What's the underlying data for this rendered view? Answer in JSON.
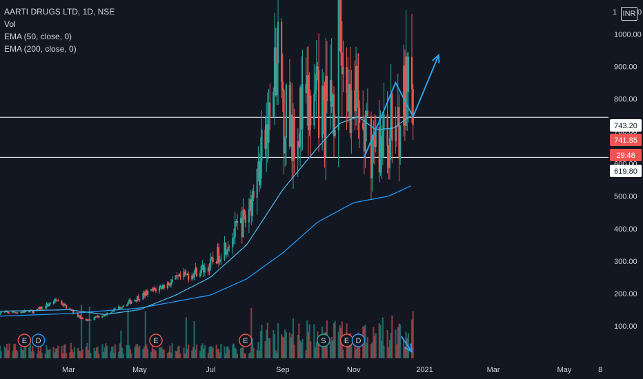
{
  "header": {
    "title": "AARTI DRUGS LTD, 1D, NSE",
    "indicators": [
      "Vol",
      "EMA (50, close, 0)",
      "EMA (200, close, 0)"
    ],
    "currency": "INR",
    "currency_left": "1",
    "currency_right": "0"
  },
  "colors": {
    "background": "#131722",
    "up": "#26a69a",
    "down": "#ef5350",
    "ema50": "#4ab3e2",
    "ema200": "#2196f3",
    "drawing": "#29a3e8",
    "level_line": "#ffffff",
    "text": "#d1d4dc"
  },
  "chart_data": {
    "type": "candlestick",
    "y_axis": {
      "ticks": [
        100,
        200,
        300,
        400,
        500,
        600,
        700,
        800,
        900,
        1000
      ],
      "tick_labels": [
        "100.00",
        "200.00",
        "300.00",
        "400.00",
        "500.00",
        "600.00",
        "700.00",
        "800.00",
        "900.00",
        "1000.00"
      ],
      "range": [
        0,
        1105
      ]
    },
    "x_axis": {
      "tick_labels": [
        "Mar",
        "May",
        "Jul",
        "Sep",
        "Nov",
        "2021",
        "Mar",
        "May",
        "8"
      ],
      "range": [
        "2020-01-02",
        "2021-06-08"
      ]
    },
    "horizontal_lines": [
      {
        "value": 743.2,
        "label": "743.20"
      },
      {
        "value": 619.8,
        "label": "619.80"
      }
    ],
    "price_badges": [
      {
        "label": "743.20",
        "style": "white"
      },
      {
        "label": "741.85",
        "style": "red"
      },
      {
        "label": "29:48",
        "style": "red"
      },
      {
        "label": "619.80",
        "style": "white"
      }
    ],
    "close_anchors": [
      [
        "2020-01-01",
        140
      ],
      [
        "2020-02-01",
        145
      ],
      [
        "2020-02-20",
        180
      ],
      [
        "2020-03-15",
        115
      ],
      [
        "2020-04-01",
        135
      ],
      [
        "2020-05-01",
        190
      ],
      [
        "2020-05-31",
        240
      ],
      [
        "2020-06-30",
        285
      ],
      [
        "2020-07-31",
        430
      ],
      [
        "2020-08-10",
        560
      ],
      [
        "2020-08-20",
        720
      ],
      [
        "2020-08-27",
        880
      ],
      [
        "2020-09-05",
        730
      ],
      [
        "2020-09-30",
        760
      ],
      [
        "2020-10-10",
        740
      ],
      [
        "2020-10-20",
        960
      ],
      [
        "2020-10-31",
        800
      ],
      [
        "2020-11-10",
        680
      ],
      [
        "2020-11-20",
        650
      ],
      [
        "2020-12-05",
        710
      ],
      [
        "2020-12-12",
        780
      ],
      [
        "2020-12-18",
        790
      ],
      [
        "2020-12-22",
        742
      ]
    ],
    "ema50_points": [
      [
        "2020-01-01",
        145
      ],
      [
        "2020-03-01",
        150
      ],
      [
        "2020-04-01",
        135
      ],
      [
        "2020-05-01",
        150
      ],
      [
        "2020-06-01",
        195
      ],
      [
        "2020-07-01",
        250
      ],
      [
        "2020-08-01",
        350
      ],
      [
        "2020-09-01",
        520
      ],
      [
        "2020-10-01",
        650
      ],
      [
        "2020-10-20",
        725
      ],
      [
        "2020-11-05",
        745
      ],
      [
        "2020-11-20",
        705
      ],
      [
        "2020-12-05",
        710
      ],
      [
        "2020-12-22",
        752
      ]
    ],
    "ema200_points": [
      [
        "2020-01-01",
        130
      ],
      [
        "2020-03-01",
        138
      ],
      [
        "2020-05-01",
        155
      ],
      [
        "2020-07-01",
        195
      ],
      [
        "2020-08-01",
        245
      ],
      [
        "2020-09-01",
        325
      ],
      [
        "2020-10-01",
        420
      ],
      [
        "2020-11-01",
        480
      ],
      [
        "2020-12-01",
        500
      ],
      [
        "2020-12-22",
        535
      ]
    ],
    "drawings": {
      "pattern": [
        [
          "2020-11-10",
          620
        ],
        [
          "2020-12-07",
          850
        ],
        [
          "2020-12-22",
          745
        ],
        [
          "2021-01-13",
          935
        ]
      ],
      "volume_arrow": [
        [
          "2020-12-12",
          20
        ],
        [
          "2020-12-21",
          6
        ]
      ]
    },
    "events": [
      {
        "label": "E",
        "date": "2020-01-23",
        "color": "red"
      },
      {
        "label": "D",
        "date": "2020-02-04",
        "color": "blue"
      },
      {
        "label": "E",
        "date": "2020-05-15",
        "color": "red"
      },
      {
        "label": "E",
        "date": "2020-07-31",
        "color": "red"
      },
      {
        "label": "S",
        "date": "2020-10-06",
        "color": "green"
      },
      {
        "label": "E",
        "date": "2020-10-26",
        "color": "red"
      },
      {
        "label": "D",
        "date": "2020-11-05",
        "color": "blue"
      }
    ],
    "volume_axis": {
      "range": [
        0,
        100
      ]
    }
  }
}
